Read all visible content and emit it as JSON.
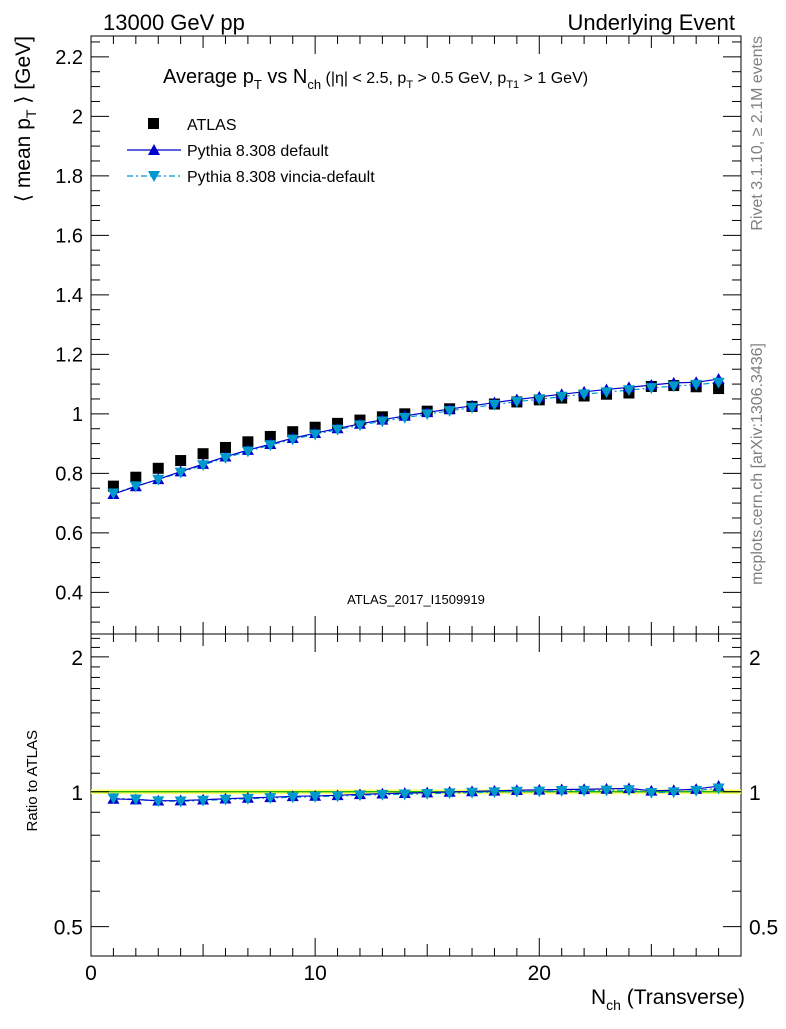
{
  "header": {
    "left": "13000 GeV pp",
    "right": "Underlying Event"
  },
  "title": {
    "main": "Average p",
    "main_sub": "T",
    "vs": " vs N",
    "vs_sub": "ch",
    "cuts_a": " (|η| < 2.5, p",
    "cuts_a_sub": "T",
    "cuts_b": " > 0.5 GeV, p",
    "cuts_b_sub": "T1",
    "cuts_c": " > 1 GeV)"
  },
  "side": {
    "rivet": "Rivet 3.1.10, ≥ 2.1M events",
    "mcplots": "mcplots.cern.ch [arXiv:1306.3436]"
  },
  "watermark": "ATLAS_2017_I1509919",
  "axes": {
    "ylabel_a": "⟨ mean p",
    "ylabel_sub": "T",
    "ylabel_b": " ⟩ [GeV]",
    "ratio_ylabel": "Ratio to ATLAS",
    "xlabel_a": "N",
    "xlabel_sub": "ch",
    "xlabel_b": " (Transverse)"
  },
  "legend": [
    {
      "label": "ATLAS",
      "marker": "square",
      "color": "#000000"
    },
    {
      "label": "Pythia 8.308 default",
      "marker": "triangle-up",
      "color": "#0000cc"
    },
    {
      "label": "Pythia 8.308 vincia-default",
      "marker": "triangle-down",
      "color": "#0099cc"
    }
  ],
  "colors": {
    "data": "#000000",
    "default": "#0000cc",
    "vincia": "#0099cc",
    "ratio_band": "#ffff66",
    "ratio_line": "#00aa00"
  },
  "chart_data": [
    {
      "type": "scatter",
      "panel": "main",
      "xlim": [
        0,
        29
      ],
      "ylim": [
        0.26,
        2.27
      ],
      "yticks": [
        0.4,
        0.6,
        0.8,
        1,
        1.2,
        1.4,
        1.6,
        1.8,
        2,
        2.2
      ],
      "ytick_labels": [
        "0.4",
        "0.6",
        "0.8",
        "1",
        "1.2",
        "1.4",
        "1.6",
        "1.8",
        "2",
        "2.2"
      ],
      "x": [
        1,
        2,
        3,
        4,
        5,
        6,
        7,
        8,
        9,
        10,
        11,
        12,
        13,
        14,
        15,
        16,
        17,
        18,
        19,
        20,
        21,
        22,
        23,
        24,
        25,
        26,
        27,
        28
      ],
      "series": [
        {
          "name": "ATLAS",
          "values": [
            0.757,
            0.787,
            0.817,
            0.843,
            0.866,
            0.887,
            0.906,
            0.924,
            0.94,
            0.955,
            0.968,
            0.979,
            0.99,
            1.0,
            1.009,
            1.017,
            1.025,
            1.033,
            1.04,
            1.047,
            1.053,
            1.06,
            1.066,
            1.07,
            1.092,
            1.095,
            1.091,
            1.085
          ]
        },
        {
          "name": "Pythia 8.308 default",
          "values": [
            0.73,
            0.756,
            0.78,
            0.806,
            0.831,
            0.856,
            0.878,
            0.898,
            0.918,
            0.935,
            0.951,
            0.966,
            0.98,
            0.993,
            1.005,
            1.016,
            1.027,
            1.038,
            1.048,
            1.057,
            1.066,
            1.074,
            1.082,
            1.089,
            1.097,
            1.104,
            1.106,
            1.117
          ]
        },
        {
          "name": "Pythia 8.308 vincia-default",
          "values": [
            0.733,
            0.757,
            0.779,
            0.803,
            0.828,
            0.852,
            0.874,
            0.895,
            0.914,
            0.931,
            0.947,
            0.962,
            0.975,
            0.987,
            0.999,
            1.01,
            1.021,
            1.031,
            1.041,
            1.049,
            1.058,
            1.066,
            1.073,
            1.08,
            1.087,
            1.093,
            1.098,
            1.105
          ]
        }
      ]
    },
    {
      "type": "scatter",
      "panel": "ratio",
      "xlim": [
        0,
        29
      ],
      "ylim": [
        0.43,
        2.25
      ],
      "ytick_labels": [
        "0.5",
        "1",
        "2"
      ],
      "yticks": [
        0.5,
        1,
        2
      ],
      "xticks": [
        0,
        10,
        20
      ],
      "xtick_labels": [
        "0",
        "10",
        "20"
      ],
      "x": [
        1,
        2,
        3,
        4,
        5,
        6,
        7,
        8,
        9,
        10,
        11,
        12,
        13,
        14,
        15,
        16,
        17,
        18,
        19,
        20,
        21,
        22,
        23,
        24,
        25,
        26,
        27,
        28
      ],
      "series": [
        {
          "name": "Pythia 8.308 default",
          "values": [
            0.964,
            0.961,
            0.955,
            0.956,
            0.96,
            0.965,
            0.969,
            0.972,
            0.977,
            0.979,
            0.982,
            0.987,
            0.99,
            0.993,
            0.996,
            0.999,
            1.002,
            1.005,
            1.008,
            1.01,
            1.012,
            1.013,
            1.015,
            1.018,
            1.005,
            1.008,
            1.014,
            1.03
          ]
        },
        {
          "name": "Pythia 8.308 vincia-default",
          "values": [
            0.968,
            0.962,
            0.953,
            0.952,
            0.956,
            0.961,
            0.965,
            0.969,
            0.972,
            0.975,
            0.978,
            0.983,
            0.985,
            0.987,
            0.99,
            0.993,
            0.996,
            0.998,
            1.001,
            1.002,
            1.005,
            1.006,
            1.007,
            1.009,
            0.995,
            0.998,
            1.006,
            1.018
          ]
        }
      ]
    }
  ]
}
